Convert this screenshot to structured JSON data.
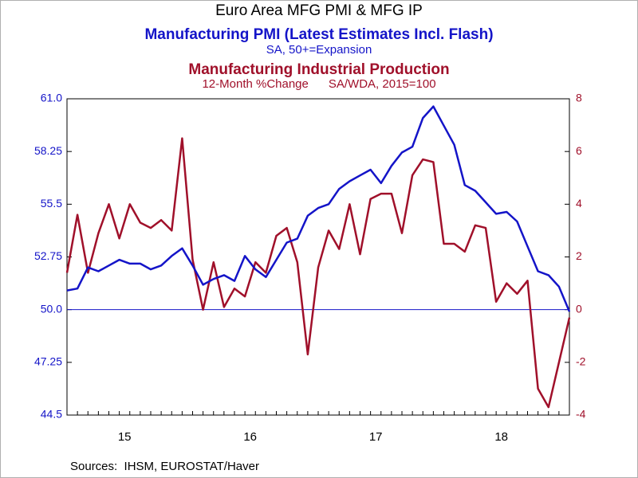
{
  "chart_data": {
    "type": "line",
    "title": "Euro Area MFG PMI & MFG IP",
    "subtitle": "Manufacturing PMI (Latest Estimates Incl. Flash)",
    "subtitle2": "SA, 50+=Expansion",
    "subtitle3": "Manufacturing Industrial Production",
    "subtitle4": "12-Month %Change      SA/WDA, 2015=100",
    "source": "Sources:  IHSM, EUROSTAT/Haver",
    "categories": [
      null,
      null,
      null,
      null,
      null,
      null,
      "15",
      null,
      null,
      null,
      null,
      null,
      null,
      null,
      null,
      null,
      null,
      null,
      "16",
      null,
      null,
      null,
      null,
      null,
      null,
      null,
      null,
      null,
      null,
      null,
      "17",
      null,
      null,
      null,
      null,
      null,
      null,
      null,
      null,
      null,
      null,
      null,
      "18",
      null,
      null,
      null,
      null,
      null,
      null
    ],
    "series": [
      {
        "name": "Manufacturing PMI",
        "color": "#1414c8",
        "axis": "y",
        "values": [
          51.0,
          51.1,
          52.2,
          52.0,
          52.3,
          52.6,
          52.4,
          52.4,
          52.1,
          52.3,
          52.8,
          53.2,
          52.3,
          51.3,
          51.6,
          51.8,
          51.5,
          52.8,
          52.1,
          51.7,
          52.6,
          53.5,
          53.7,
          54.9,
          55.3,
          55.5,
          56.3,
          56.7,
          57.0,
          57.3,
          56.6,
          57.5,
          58.2,
          58.5,
          60.0,
          60.6,
          59.6,
          58.6,
          56.5,
          56.2,
          55.6,
          55.0,
          55.1,
          54.6,
          53.3,
          52.0,
          51.8,
          51.2,
          49.9
        ]
      },
      {
        "name": "Manufacturing Industrial Production",
        "color": "#a0102a",
        "axis": "y2",
        "values": [
          1.4,
          3.6,
          1.4,
          2.9,
          4.0,
          2.7,
          4.0,
          3.3,
          3.1,
          3.4,
          3.0,
          6.5,
          1.9,
          0.0,
          1.8,
          0.1,
          0.8,
          0.5,
          1.8,
          1.4,
          2.8,
          3.1,
          1.8,
          -1.7,
          1.6,
          3.0,
          2.3,
          4.0,
          2.1,
          4.2,
          4.4,
          4.4,
          2.9,
          5.1,
          5.7,
          5.6,
          2.5,
          2.5,
          2.2,
          3.2,
          3.1,
          0.3,
          1.0,
          0.6,
          1.1,
          -3.0,
          -3.7,
          -2.0,
          -0.3
        ]
      }
    ],
    "ylim": [
      44.5,
      61
    ],
    "yticks": [
      44.5,
      47.25,
      {
        "value": 50,
        "label": "50.0"
      },
      52.75,
      55.5,
      58.25,
      {
        "value": 61,
        "label": "61.0"
      }
    ],
    "ytick_labels_override": null,
    "y2lim": [
      -4,
      8
    ],
    "y2ticks": [
      -4,
      -2,
      0,
      2,
      4,
      6,
      8
    ],
    "hline": 50
  }
}
